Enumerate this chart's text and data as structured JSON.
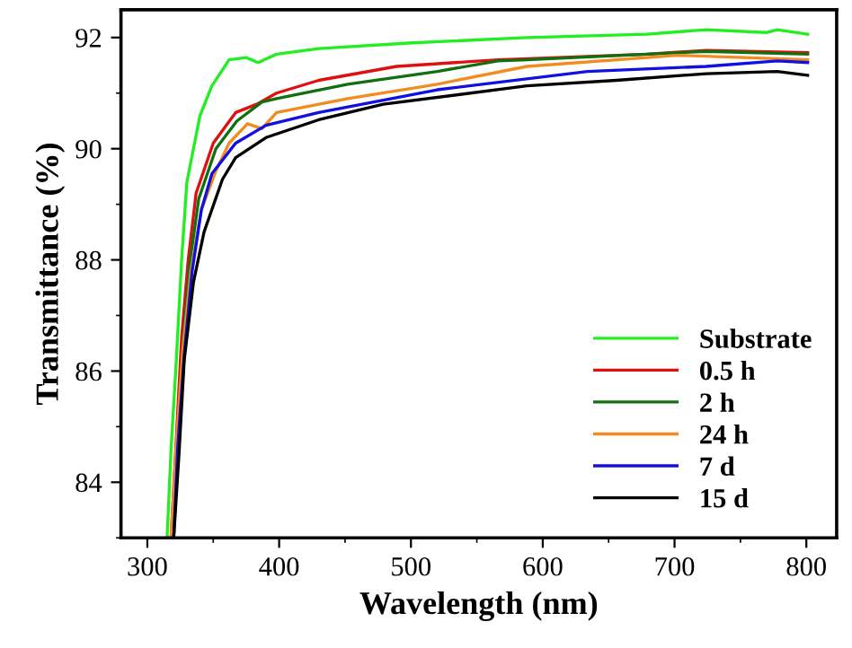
{
  "chart_data": {
    "type": "line",
    "xlabel": "Wavelength (nm)",
    "ylabel": "Transmittance (%)",
    "xlim": [
      280,
      823
    ],
    "ylim": [
      83,
      92.5
    ],
    "xticks": [
      300,
      400,
      500,
      600,
      700,
      800
    ],
    "yticks": [
      84,
      86,
      88,
      90,
      92
    ],
    "grid": false,
    "legend": "bottom right",
    "line_style": "solid",
    "marker": "none",
    "series": [
      {
        "name": "Substrate",
        "color": "#22ee22",
        "x": [
          315,
          318,
          322,
          326,
          330,
          340,
          349,
          362,
          375,
          384,
          398,
          430,
          498,
          588,
          679,
          724,
          770,
          778,
          801
        ],
        "values": [
          83,
          84.6,
          86.2,
          88.0,
          89.4,
          90.6,
          91.13,
          91.6,
          91.64,
          91.55,
          91.7,
          91.8,
          91.9,
          92.0,
          92.06,
          92.14,
          92.09,
          92.14,
          92.06
        ]
      },
      {
        "name": "0.5 h",
        "color": "#e01010",
        "x": [
          318,
          322,
          326,
          331,
          337,
          350,
          367,
          383,
          398,
          430,
          489,
          566,
          679,
          724,
          801
        ],
        "values": [
          83,
          84.8,
          86.6,
          88.0,
          89.2,
          90.1,
          90.65,
          90.8,
          91.0,
          91.23,
          91.48,
          91.6,
          91.7,
          91.77,
          91.73
        ]
      },
      {
        "name": "2 h",
        "color": "#107010",
        "x": [
          319,
          323,
          327,
          332,
          339,
          352,
          368,
          387,
          398,
          452,
          520,
          566,
          588,
          679,
          724,
          801
        ],
        "values": [
          83,
          84.8,
          86.5,
          87.9,
          89.1,
          90.0,
          90.5,
          90.84,
          90.9,
          91.16,
          91.39,
          91.58,
          91.6,
          91.7,
          91.75,
          91.7
        ]
      },
      {
        "name": "24 h",
        "color": "#f08c20",
        "x": [
          318,
          322,
          327,
          333,
          341,
          352,
          362,
          376,
          387,
          398,
          452,
          520,
          588,
          702,
          801
        ],
        "values": [
          83,
          84.7,
          86.4,
          87.8,
          88.9,
          89.6,
          90.1,
          90.45,
          90.36,
          90.65,
          90.9,
          91.16,
          91.48,
          91.68,
          91.6
        ]
      },
      {
        "name": "7 d",
        "color": "#1010e0",
        "x": [
          320,
          323,
          328,
          334,
          341,
          349,
          367,
          390,
          430,
          520,
          634,
          724,
          778,
          801
        ],
        "values": [
          83,
          84.6,
          86.3,
          87.8,
          88.9,
          89.55,
          90.1,
          90.42,
          90.65,
          91.06,
          91.39,
          91.48,
          91.58,
          91.55
        ]
      },
      {
        "name": "15 d",
        "color": "#000000",
        "x": [
          320,
          324,
          328,
          335,
          343,
          357,
          367,
          390,
          430,
          479,
          588,
          656,
          724,
          778,
          801
        ],
        "values": [
          83,
          84.5,
          86.2,
          87.6,
          88.5,
          89.45,
          89.84,
          90.2,
          90.52,
          90.8,
          91.13,
          91.23,
          91.35,
          91.39,
          91.32
        ]
      }
    ]
  }
}
